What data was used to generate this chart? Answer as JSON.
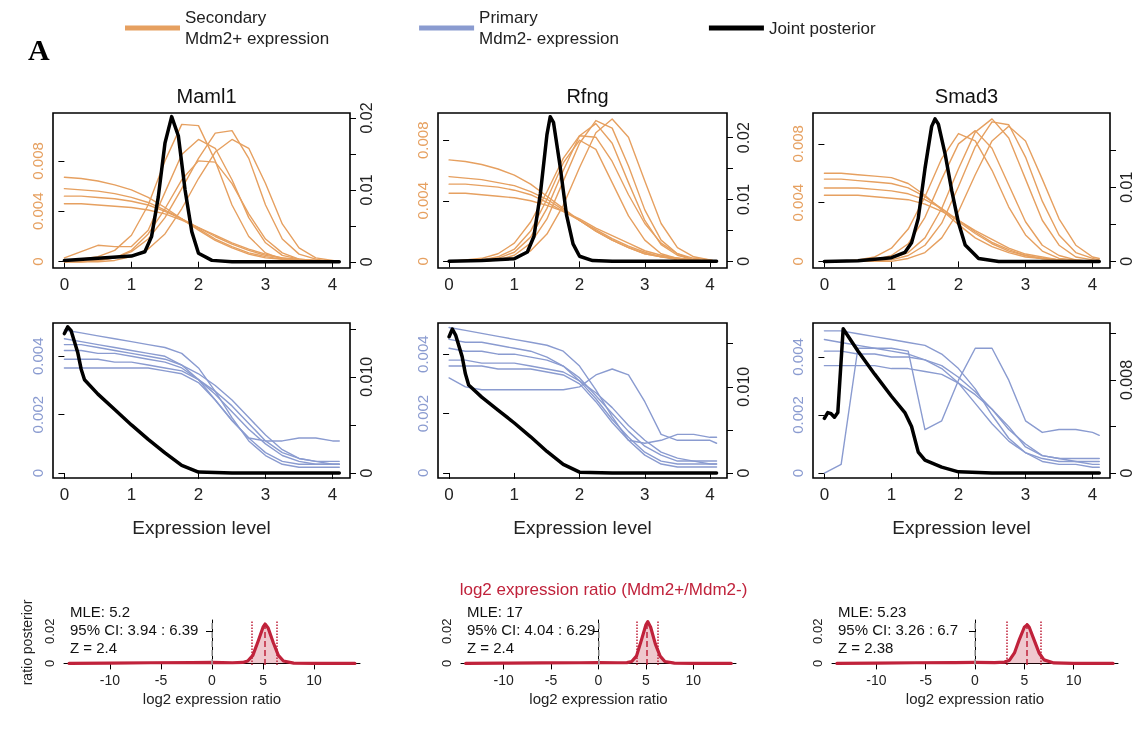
{
  "chart_data": [
    {
      "type": "line",
      "title": "Maml1",
      "annotations": [
        "A"
      ],
      "legend": "top",
      "xlim": [
        -0.17,
        4.26
      ],
      "xticks": [
        0,
        1,
        2,
        3,
        4
      ],
      "ylim": [
        -0.0005,
        0.0118
      ],
      "yticks": [
        0,
        0.004,
        0.008
      ],
      "y2lim": [
        -0.00086,
        0.0207
      ],
      "y2ticks": [
        0,
        {
          "value": 0.005,
          "label": null
        },
        0.01,
        {
          "value": 0.015,
          "label": null
        },
        0.02
      ],
      "x": [
        0,
        0.25,
        0.5,
        0.75,
        1,
        1.25,
        1.5,
        1.75,
        2,
        2.25,
        2.5,
        2.75,
        3,
        3.25,
        3.5,
        3.75,
        4,
        4.1
      ],
      "series": [
        {
          "name": "Secondary\nMdm2+ expression",
          "color": "#e6a060",
          "values": [
            0.0067,
            0.0066,
            0.0064,
            0.0061,
            0.0057,
            0.0051,
            0.0043,
            0.0034,
            0.0025,
            0.0017,
            0.0011,
            0.0006,
            0.0003,
            0.0002,
            0.0001,
            0,
            0,
            0
          ]
        },
        {
          "color": "#e6a060",
          "values": [
            0.0058,
            0.0057,
            0.0056,
            0.0054,
            0.0051,
            0.0047,
            0.0041,
            0.0034,
            0.0026,
            0.0018,
            0.0012,
            0.0007,
            0.0004,
            0.0002,
            0.0001,
            0.0001,
            0,
            0
          ]
        },
        {
          "color": "#e6a060",
          "values": [
            0.0052,
            0.0052,
            0.0051,
            0.005,
            0.0048,
            0.0045,
            0.004,
            0.0034,
            0.0027,
            0.002,
            0.0014,
            0.0009,
            0.0005,
            0.0003,
            0.0001,
            0.0001,
            0,
            0
          ]
        },
        {
          "color": "#e6a060",
          "values": [
            0.0046,
            0.0046,
            0.0045,
            0.0044,
            0.0043,
            0.0041,
            0.0038,
            0.0033,
            0.0027,
            0.0021,
            0.0015,
            0.001,
            0.0006,
            0.0003,
            0.0002,
            0.0001,
            0,
            0
          ]
        },
        {
          "color": "#e6a060",
          "values": [
            0.0001,
            0.0002,
            0.0004,
            0.0009,
            0.0021,
            0.0045,
            0.008,
            0.0109,
            0.0108,
            0.008,
            0.0045,
            0.002,
            0.0007,
            0.0002,
            0.0001,
            0,
            0,
            0
          ]
        },
        {
          "color": "#e6a060",
          "values": [
            0.0003,
            0.0008,
            0.0013,
            0.0012,
            0.0012,
            0.0025,
            0.0055,
            0.0085,
            0.0097,
            0.009,
            0.0065,
            0.0035,
            0.0015,
            0.0005,
            0.0002,
            0,
            0,
            0
          ]
        },
        {
          "color": "#e6a060",
          "values": [
            0,
            0,
            0.0001,
            0.0003,
            0.0008,
            0.0018,
            0.0035,
            0.0058,
            0.0082,
            0.0102,
            0.0104,
            0.0082,
            0.0045,
            0.0018,
            0.0006,
            0.0002,
            0,
            0
          ]
        },
        {
          "color": "#e6a060",
          "values": [
            0,
            0,
            0,
            0.0001,
            0.0004,
            0.001,
            0.0022,
            0.0042,
            0.0066,
            0.0087,
            0.0097,
            0.009,
            0.0062,
            0.003,
            0.0011,
            0.0003,
            0.0001,
            0
          ]
        },
        {
          "color": "#e6a060",
          "values": [
            0,
            0,
            0.0001,
            0.0003,
            0.0009,
            0.0022,
            0.0042,
            0.0065,
            0.008,
            0.0079,
            0.0062,
            0.0038,
            0.0018,
            0.0007,
            0.0002,
            0.0001,
            0,
            0
          ]
        },
        {
          "name": "Joint posterior",
          "color": "#000000",
          "axis": "y2",
          "x": [
            0,
            0.5,
            1,
            1.2,
            1.3,
            1.4,
            1.5,
            1.6,
            1.7,
            1.8,
            1.9,
            2,
            2.2,
            2.5,
            3,
            4.1
          ],
          "values": [
            0.0002,
            0.0005,
            0.0008,
            0.0014,
            0.0035,
            0.009,
            0.0165,
            0.0202,
            0.0175,
            0.01,
            0.0042,
            0.0012,
            0.0002,
            0,
            0,
            0
          ]
        }
      ]
    },
    {
      "type": "line",
      "title": "Rfng",
      "xlim": [
        -0.17,
        4.26
      ],
      "xticks": [
        0,
        1,
        2,
        3,
        4
      ],
      "ylim": [
        -0.00044,
        0.0098
      ],
      "yticks": [
        0,
        0.004,
        0.008
      ],
      "y2lim": [
        -0.0011,
        0.024
      ],
      "y2ticks": [
        0,
        {
          "value": 0.005,
          "label": null
        },
        0.01,
        {
          "value": 0.015,
          "label": null
        },
        0.02
      ],
      "x": [
        0,
        0.25,
        0.5,
        0.75,
        1,
        1.25,
        1.5,
        1.75,
        2,
        2.25,
        2.5,
        2.75,
        3,
        3.25,
        3.5,
        3.75,
        4,
        4.1
      ],
      "series": [
        {
          "color": "#e6a060",
          "values": [
            0.0067,
            0.0066,
            0.0064,
            0.0061,
            0.0057,
            0.0051,
            0.0043,
            0.0035,
            0.0027,
            0.002,
            0.0014,
            0.0009,
            0.0005,
            0.0003,
            0.0002,
            0.0001,
            0,
            0
          ]
        },
        {
          "color": "#e6a060",
          "values": [
            0.0056,
            0.0055,
            0.0054,
            0.0052,
            0.005,
            0.0046,
            0.0041,
            0.0034,
            0.0027,
            0.002,
            0.0014,
            0.0009,
            0.0005,
            0.0003,
            0.0001,
            0.0001,
            0,
            0
          ]
        },
        {
          "color": "#e6a060",
          "values": [
            0.0051,
            0.0051,
            0.005,
            0.0049,
            0.0047,
            0.0044,
            0.0039,
            0.0033,
            0.0027,
            0.0021,
            0.0015,
            0.001,
            0.0006,
            0.0003,
            0.0002,
            0.0001,
            0,
            0
          ]
        },
        {
          "color": "#e6a060",
          "values": [
            0.0045,
            0.0045,
            0.0044,
            0.0043,
            0.0042,
            0.004,
            0.0037,
            0.0033,
            0.0028,
            0.0022,
            0.0017,
            0.0012,
            0.0007,
            0.0004,
            0.0002,
            0.0001,
            0,
            0
          ]
        },
        {
          "color": "#e6a060",
          "values": [
            0,
            0,
            0.0001,
            0.0002,
            0.0006,
            0.0016,
            0.0035,
            0.006,
            0.0083,
            0.0091,
            0.0078,
            0.0052,
            0.0027,
            0.0011,
            0.0004,
            0.0001,
            0,
            0
          ]
        },
        {
          "color": "#e6a060",
          "values": [
            null,
            null,
            0,
            0.0001,
            0.0004,
            0.0012,
            0.0028,
            0.0053,
            0.0078,
            0.0093,
            0.0088,
            0.0063,
            0.0034,
            0.0014,
            0.0005,
            0.0001,
            0,
            0
          ]
        },
        {
          "color": "#e6a060",
          "values": [
            null,
            null,
            0,
            0.0001,
            0.0002,
            0.0007,
            0.0018,
            0.0037,
            0.0062,
            0.0085,
            0.0094,
            0.0082,
            0.0053,
            0.0025,
            0.0009,
            0.0003,
            0.0001,
            0
          ]
        },
        {
          "color": "#e6a060",
          "values": [
            0,
            0.0001,
            0.0002,
            0.0005,
            0.0012,
            0.0026,
            0.0046,
            0.0068,
            0.0083,
            0.0082,
            0.0066,
            0.0044,
            0.0025,
            0.0012,
            0.0005,
            0.0002,
            0.0001,
            0
          ]
        },
        {
          "color": "#e6a060",
          "values": [
            0,
            0,
            0.0001,
            0.0003,
            0.0008,
            0.002,
            0.0041,
            0.0065,
            0.008,
            0.0074,
            0.0052,
            0.003,
            0.0014,
            0.0005,
            0.0002,
            0,
            0,
            0
          ]
        },
        {
          "color": "#000000",
          "axis": "y2",
          "x": [
            0,
            0.5,
            1,
            1.2,
            1.3,
            1.4,
            1.5,
            1.55,
            1.6,
            1.7,
            1.8,
            1.9,
            2,
            2.2,
            2.5,
            4.1
          ],
          "values": [
            0,
            0.0001,
            0.0004,
            0.0015,
            0.004,
            0.011,
            0.0205,
            0.0234,
            0.0225,
            0.0155,
            0.0075,
            0.0028,
            0.0008,
            0.0001,
            0,
            0
          ]
        }
      ]
    },
    {
      "type": "line",
      "title": "Smad3",
      "xlim": [
        -0.17,
        4.26
      ],
      "xticks": [
        0,
        1,
        2,
        3,
        4
      ],
      "ylim": [
        -0.00045,
        0.0101
      ],
      "yticks": [
        0,
        0.004,
        0.008
      ],
      "y2lim": [
        -0.00089,
        0.02
      ],
      "y2ticks": [
        0,
        {
          "value": 0.005,
          "label": null
        },
        0.01,
        {
          "value": 0.015,
          "label": null
        }
      ],
      "x": [
        0,
        0.25,
        0.5,
        0.75,
        1,
        1.25,
        1.5,
        1.75,
        2,
        2.25,
        2.5,
        2.75,
        3,
        3.25,
        3.5,
        3.75,
        4,
        4.1
      ],
      "series": [
        {
          "color": "#e6a060",
          "values": [
            0.006,
            0.006,
            0.0059,
            0.0058,
            0.0057,
            0.0053,
            0.0045,
            0.0035,
            0.0025,
            0.0016,
            0.001,
            0.0006,
            0.0003,
            0.0002,
            0.0001,
            0,
            0,
            0
          ]
        },
        {
          "color": "#e6a060",
          "values": [
            0.0056,
            0.0056,
            0.0055,
            0.0054,
            0.0053,
            0.005,
            0.0044,
            0.0036,
            0.0027,
            0.0019,
            0.0012,
            0.0007,
            0.0004,
            0.0002,
            0.0001,
            0,
            0,
            0
          ]
        },
        {
          "color": "#e6a060",
          "values": [
            0.005,
            0.005,
            0.005,
            0.0049,
            0.0048,
            0.0046,
            0.0042,
            0.0036,
            0.0028,
            0.002,
            0.0013,
            0.0008,
            0.0004,
            0.0002,
            0.0001,
            0,
            0,
            0
          ]
        },
        {
          "color": "#e6a060",
          "values": [
            0.0045,
            0.0045,
            0.0045,
            0.0044,
            0.0043,
            0.0042,
            0.0039,
            0.0034,
            0.0028,
            0.0021,
            0.0015,
            0.0009,
            0.0005,
            0.0003,
            0.0001,
            0,
            0,
            0
          ]
        },
        {
          "color": "#e6a060",
          "values": [
            0,
            0,
            0.0001,
            0.0003,
            0.0009,
            0.0022,
            0.0044,
            0.007,
            0.0087,
            0.0082,
            0.0062,
            0.0037,
            0.0018,
            0.0007,
            0.0002,
            0.0001,
            0,
            0
          ]
        },
        {
          "color": "#e6a060",
          "values": [
            null,
            null,
            0,
            0.0001,
            0.0004,
            0.0012,
            0.003,
            0.0056,
            0.008,
            0.0089,
            0.0077,
            0.0052,
            0.0027,
            0.0011,
            0.0004,
            0.0001,
            0,
            0
          ]
        },
        {
          "color": "#e6a060",
          "values": [
            null,
            null,
            0,
            0,
            0.0002,
            0.0006,
            0.0016,
            0.0036,
            0.0063,
            0.0088,
            0.0097,
            0.0084,
            0.0056,
            0.0028,
            0.0011,
            0.0003,
            0.0001,
            0
          ]
        },
        {
          "color": "#e6a060",
          "values": [
            null,
            null,
            0,
            0,
            0.0001,
            0.0004,
            0.0011,
            0.0026,
            0.0051,
            0.0078,
            0.0095,
            0.0093,
            0.0071,
            0.0041,
            0.0018,
            0.0006,
            0.0002,
            0.0001
          ]
        },
        {
          "color": "#e6a060",
          "values": [
            null,
            null,
            0,
            0,
            0,
            0.0002,
            0.0006,
            0.0016,
            0.0034,
            0.0059,
            0.0082,
            0.0092,
            0.0082,
            0.0056,
            0.0029,
            0.0011,
            0.0003,
            0.0002
          ]
        },
        {
          "color": "#000000",
          "axis": "y2",
          "x": [
            0,
            0.5,
            1,
            1.2,
            1.3,
            1.4,
            1.5,
            1.6,
            1.65,
            1.7,
            1.8,
            1.9,
            2,
            2.1,
            2.3,
            2.6,
            4.1
          ],
          "values": [
            0,
            0.0001,
            0.0005,
            0.0012,
            0.0025,
            0.0058,
            0.0125,
            0.0182,
            0.0192,
            0.0185,
            0.0145,
            0.0095,
            0.0052,
            0.0022,
            0.0004,
            0,
            0
          ]
        }
      ]
    },
    {
      "type": "line",
      "xlabel": "Expression level",
      "legend": "top",
      "xlim": [
        -0.17,
        4.26
      ],
      "xticks": [
        0,
        1,
        2,
        3,
        4
      ],
      "ylim": [
        -0.00017,
        0.00514
      ],
      "yticks": [
        0,
        0.002,
        0.004
      ],
      "y2lim": [
        -0.00052,
        0.0156
      ],
      "y2ticks": [
        0,
        {
          "value": 0.005,
          "label": null
        },
        {
          "value": 0.01,
          "label": "0.010"
        },
        {
          "value": 0.015,
          "label": null
        }
      ],
      "x": [
        0,
        0.25,
        0.5,
        0.75,
        1,
        1.25,
        1.5,
        1.75,
        2,
        2.25,
        2.5,
        2.75,
        3,
        3.25,
        3.5,
        3.75,
        4,
        4.1
      ],
      "series": [
        {
          "name": "Primary\nMdm2- expression",
          "color": "#8a9bd0",
          "values": [
            0.0049,
            0.0048,
            0.0047,
            0.0046,
            0.0045,
            0.0044,
            0.0043,
            0.0041,
            0.0036,
            0.0028,
            0.0019,
            0.0011,
            0.0006,
            0.0003,
            0.0002,
            0.0002,
            0.0002,
            0.0002
          ]
        },
        {
          "color": "#8a9bd0",
          "values": [
            0.0046,
            0.0045,
            0.0044,
            0.0043,
            0.0042,
            0.0041,
            0.004,
            0.0037,
            0.0032,
            0.0025,
            0.0018,
            0.0012,
            0.0007,
            0.0004,
            0.0003,
            0.0003,
            0.0003,
            0.0003
          ]
        },
        {
          "color": "#8a9bd0",
          "values": [
            0.0042,
            0.0042,
            0.0041,
            0.0041,
            0.004,
            0.0039,
            0.0038,
            0.0036,
            0.0032,
            0.0027,
            0.0021,
            0.0015,
            0.001,
            0.0006,
            0.0004,
            0.0003,
            0.0003,
            0.0003
          ]
        },
        {
          "color": "#8a9bd0",
          "values": [
            0.0039,
            0.0039,
            0.0039,
            0.0038,
            0.0038,
            0.0037,
            0.0036,
            0.0035,
            0.0032,
            0.0028,
            0.0023,
            0.0017,
            0.0011,
            0.0007,
            0.0005,
            0.0004,
            0.0004,
            0.0004
          ]
        },
        {
          "color": "#8a9bd0",
          "values": [
            0.0036,
            0.0036,
            0.0036,
            0.0036,
            0.0036,
            0.0036,
            0.0035,
            0.0034,
            0.0031,
            0.0025,
            0.0018,
            0.0012,
            0.0011,
            0.0011,
            0.0012,
            0.0012,
            0.0011,
            0.0011
          ]
        },
        {
          "color": "#8a9bd0",
          "values": [
            0.0044,
            0.0044,
            0.0043,
            0.0042,
            0.0041,
            0.004,
            0.0039,
            0.0037,
            0.0034,
            0.003,
            0.0025,
            0.0019,
            0.0013,
            0.0008,
            0.0005,
            0.0004,
            0.0003,
            0.0003
          ]
        },
        {
          "color": "#000000",
          "axis": "y2",
          "x": [
            0,
            0.05,
            0.1,
            0.2,
            0.25,
            0.3,
            0.5,
            0.75,
            1,
            1.25,
            1.5,
            1.75,
            2,
            2.5,
            3,
            4.1
          ],
          "values": [
            0.0145,
            0.0152,
            0.0148,
            0.0125,
            0.0108,
            0.0097,
            0.0082,
            0.0066,
            0.005,
            0.0035,
            0.0021,
            0.0008,
            0.0001,
            0,
            0,
            0
          ]
        }
      ]
    },
    {
      "type": "line",
      "xlabel": "Expression level",
      "xlim": [
        -0.17,
        4.26
      ],
      "xticks": [
        0,
        1,
        2,
        3,
        4
      ],
      "ylim": [
        -0.00017,
        0.00505
      ],
      "yticks": [
        0,
        0.002,
        0.004
      ],
      "y2lim": [
        -0.00058,
        0.0174
      ],
      "y2ticks": [
        0,
        {
          "value": 0.005,
          "label": null
        },
        {
          "value": 0.01,
          "label": "0.010"
        },
        {
          "value": 0.015,
          "label": null
        }
      ],
      "x": [
        0,
        0.25,
        0.5,
        0.75,
        1,
        1.25,
        1.5,
        1.75,
        2,
        2.25,
        2.5,
        2.75,
        3,
        3.25,
        3.5,
        3.75,
        4,
        4.1
      ],
      "series": [
        {
          "color": "#8a9bd0",
          "values": [
            0.0049,
            0.0048,
            0.0047,
            0.0046,
            0.0045,
            0.0044,
            0.0043,
            0.0041,
            0.0036,
            0.0028,
            0.0019,
            0.0011,
            0.0006,
            0.0003,
            0.0002,
            0.0002,
            0.0002,
            0.0002
          ]
        },
        {
          "color": "#8a9bd0",
          "values": [
            0.0045,
            0.0044,
            0.0044,
            0.0043,
            0.0042,
            0.0041,
            0.0039,
            0.0036,
            0.0031,
            0.0025,
            0.0018,
            0.0012,
            0.0007,
            0.0004,
            0.0003,
            0.0003,
            0.0003,
            0.0003
          ]
        },
        {
          "color": "#8a9bd0",
          "values": [
            0.0042,
            0.0041,
            0.0041,
            0.004,
            0.004,
            0.0039,
            0.0038,
            0.0036,
            0.0032,
            0.0026,
            0.002,
            0.0014,
            0.0009,
            0.0006,
            0.0004,
            0.0004,
            0.0003,
            0.0003
          ]
        },
        {
          "color": "#8a9bd0",
          "values": [
            0.0038,
            0.0038,
            0.0037,
            0.0037,
            0.0037,
            0.0036,
            0.0035,
            0.0034,
            0.0031,
            0.0027,
            0.0022,
            0.0016,
            0.0011,
            0.0007,
            0.0005,
            0.0004,
            0.0004,
            0.0004
          ]
        },
        {
          "color": "#8a9bd0",
          "values": [
            0.0032,
            0.0029,
            0.0028,
            0.0028,
            0.0028,
            0.0028,
            0.0028,
            0.0028,
            0.0029,
            0.0033,
            0.0035,
            0.0033,
            0.0024,
            0.0013,
            0.0011,
            0.0011,
            0.0011,
            0.001
          ]
        },
        {
          "color": "#8a9bd0",
          "values": [
            0.0036,
            0.0036,
            0.0036,
            0.0035,
            0.0035,
            0.0035,
            0.0034,
            0.0033,
            0.003,
            0.0024,
            0.0017,
            0.0011,
            0.001,
            0.0011,
            0.0013,
            0.0013,
            0.0012,
            0.0012
          ]
        },
        {
          "color": "#000000",
          "axis": "y2",
          "x": [
            0,
            0.05,
            0.1,
            0.2,
            0.25,
            0.3,
            0.5,
            0.75,
            1,
            1.25,
            1.5,
            1.75,
            2,
            2.5,
            3,
            4.1
          ],
          "values": [
            0.0158,
            0.0167,
            0.016,
            0.0135,
            0.0115,
            0.0102,
            0.0088,
            0.0073,
            0.0058,
            0.0042,
            0.0025,
            0.001,
            0.0001,
            0,
            0,
            0
          ]
        }
      ]
    },
    {
      "type": "line",
      "xlabel": "Expression level",
      "xlim": [
        -0.17,
        4.26
      ],
      "xticks": [
        0,
        1,
        2,
        3,
        4
      ],
      "ylim": [
        -0.00017,
        0.00517
      ],
      "yticks": [
        0,
        0.002,
        0.004
      ],
      "y2lim": [
        -0.00043,
        0.0129
      ],
      "y2ticks": [
        0,
        {
          "value": 0.004,
          "label": null
        },
        0.008,
        {
          "value": 0.012,
          "label": null
        }
      ],
      "x": [
        0,
        0.25,
        0.5,
        0.75,
        1,
        1.25,
        1.5,
        1.75,
        2,
        2.25,
        2.5,
        2.75,
        3,
        3.25,
        3.5,
        3.75,
        4,
        4.1
      ],
      "series": [
        {
          "color": "#8a9bd0",
          "values": [
            0.0049,
            0.0049,
            0.0048,
            0.0047,
            0.0046,
            0.0045,
            0.0044,
            0.0041,
            0.0036,
            0.0029,
            0.002,
            0.0012,
            0.0007,
            0.0004,
            0.0003,
            0.0003,
            0.0002,
            0.0002
          ]
        },
        {
          "color": "#8a9bd0",
          "values": [
            0.0046,
            0.0045,
            0.0044,
            0.0043,
            0.0042,
            0.0041,
            0.0039,
            0.0036,
            0.0031,
            0.0024,
            0.0017,
            0.0011,
            0.0007,
            0.0005,
            0.0004,
            0.0004,
            0.0003,
            0.0003
          ]
        },
        {
          "color": "#8a9bd0",
          "values": [
            0.0042,
            0.0042,
            0.0041,
            0.0041,
            0.004,
            0.004,
            0.0039,
            0.0037,
            0.0033,
            0.0028,
            0.0022,
            0.0015,
            0.001,
            0.0006,
            0.0005,
            0.0004,
            0.0004,
            0.0004
          ]
        },
        {
          "color": "#8a9bd0",
          "values": [
            0.0037,
            0.0037,
            0.0037,
            0.0037,
            0.0036,
            0.0036,
            0.0035,
            0.0034,
            0.0031,
            0.0027,
            0.0022,
            0.0016,
            0.0009,
            0.0006,
            0.0005,
            0.0005,
            0.0005,
            0.0005
          ]
        },
        {
          "color": "#8a9bd0",
          "values": [
            0,
            0.0003,
            0.0043,
            0.0043,
            0.0043,
            0.0042,
            0.0015,
            0.0018,
            0.0032,
            0.0043,
            0.0043,
            0.0032,
            0.0018,
            0.0014,
            0.0015,
            0.0015,
            0.0014,
            0.0013
          ]
        },
        {
          "color": "#000000",
          "axis": "y2",
          "x": [
            0,
            0.05,
            0.1,
            0.15,
            0.2,
            0.28,
            0.5,
            0.75,
            1,
            1.2,
            1.3,
            1.4,
            1.5,
            1.75,
            2,
            2.5,
            4.1
          ],
          "values": [
            0.0047,
            0.0052,
            0.0051,
            0.0048,
            0.0052,
            0.0124,
            0.0105,
            0.0085,
            0.0066,
            0.0052,
            0.004,
            0.0018,
            0.0011,
            0.0005,
            0.0001,
            0,
            0
          ]
        }
      ]
    },
    {
      "type": "area",
      "xlabel": "log2 expression ratio",
      "ylabel": "ratio posterior",
      "annotations": [
        "MLE: 5.2",
        "95% CI: 3.94 : 6.39",
        "Z = 2.4"
      ],
      "xlim": [
        -14.5,
        14.5
      ],
      "xticks": [
        -10,
        -5,
        0,
        5,
        10
      ],
      "ylim": [
        -0.001,
        0.027
      ],
      "yticks": [
        0,
        0.02
      ],
      "ref_lines": [
        {
          "axis": "x",
          "value": 0,
          "color": "#aaaaaa",
          "line_style": "dashed"
        },
        {
          "axis": "x",
          "value": 3.94,
          "color": "#c0223b",
          "line_style": "dotted"
        },
        {
          "axis": "x",
          "value": 6.39,
          "color": "#c0223b",
          "line_style": "dotted"
        },
        {
          "axis": "x",
          "value": 5.2,
          "color": "#c0223b",
          "line_style": "dashed"
        }
      ],
      "series": [
        {
          "color": "#c0223b",
          "x": [
            -14,
            -10,
            -6,
            -2,
            0,
            2,
            3,
            3.5,
            4,
            4.5,
            5,
            5.2,
            5.5,
            6,
            6.5,
            7,
            8,
            10,
            14
          ],
          "values": [
            0,
            0.0002,
            0.0004,
            0.0005,
            0.0006,
            0.0004,
            0.0006,
            0.0015,
            0.005,
            0.0135,
            0.0225,
            0.0245,
            0.022,
            0.013,
            0.005,
            0.0015,
            0.0002,
            0,
            0
          ]
        }
      ]
    },
    {
      "type": "area",
      "title": "log2 expression ratio (Mdm2+/Mdm2-)",
      "xlabel": "log2 expression ratio",
      "annotations": [
        "MLE: 17",
        "95% CI: 4.04 : 6.29",
        "Z = 2.4"
      ],
      "xlim": [
        -14.5,
        14.5
      ],
      "xticks": [
        -10,
        -5,
        0,
        5,
        10
      ],
      "ylim": [
        -0.001,
        0.027
      ],
      "yticks": [
        0,
        0.02
      ],
      "ref_lines": [
        {
          "axis": "x",
          "value": 0,
          "color": "#aaaaaa",
          "line_style": "dashed"
        },
        {
          "axis": "x",
          "value": 4.04,
          "color": "#c0223b",
          "line_style": "dotted"
        },
        {
          "axis": "x",
          "value": 6.29,
          "color": "#c0223b",
          "line_style": "dotted"
        },
        {
          "axis": "x",
          "value": 5.1,
          "color": "#c0223b",
          "line_style": "dashed"
        }
      ],
      "series": [
        {
          "color": "#c0223b",
          "x": [
            -14,
            -10,
            -6,
            -2,
            0,
            2,
            3,
            3.5,
            4,
            4.5,
            5,
            5.2,
            5.5,
            6,
            6.5,
            7,
            8,
            10,
            14
          ],
          "values": [
            0,
            0.0002,
            0.0003,
            0.0004,
            0.0005,
            0.0004,
            0.0005,
            0.0012,
            0.0045,
            0.014,
            0.024,
            0.026,
            0.0225,
            0.012,
            0.0045,
            0.0012,
            0.0002,
            0,
            0
          ]
        }
      ]
    },
    {
      "type": "area",
      "xlabel": "log2 expression ratio",
      "annotations": [
        "MLE: 5.23",
        "95% CI: 3.26 : 6.7",
        "Z = 2.38"
      ],
      "xlim": [
        -14.5,
        14.5
      ],
      "xticks": [
        -10,
        -5,
        0,
        5,
        10
      ],
      "ylim": [
        -0.001,
        0.027
      ],
      "yticks": [
        0,
        0.02
      ],
      "ref_lines": [
        {
          "axis": "x",
          "value": 0,
          "color": "#aaaaaa",
          "line_style": "dashed"
        },
        {
          "axis": "x",
          "value": 3.26,
          "color": "#c0223b",
          "line_style": "dotted"
        },
        {
          "axis": "x",
          "value": 6.7,
          "color": "#c0223b",
          "line_style": "dotted"
        },
        {
          "axis": "x",
          "value": 5.23,
          "color": "#c0223b",
          "line_style": "dashed"
        }
      ],
      "series": [
        {
          "color": "#c0223b",
          "x": [
            -14,
            -10,
            -6,
            -2,
            0,
            2,
            3,
            3.5,
            4,
            4.5,
            5,
            5.3,
            5.5,
            6,
            6.5,
            7,
            8,
            10,
            14
          ],
          "values": [
            0,
            0.0002,
            0.0004,
            0.0005,
            0.0006,
            0.0005,
            0.0008,
            0.002,
            0.0065,
            0.015,
            0.0225,
            0.024,
            0.0225,
            0.0145,
            0.0065,
            0.0022,
            0.0003,
            0,
            0
          ]
        }
      ]
    }
  ]
}
